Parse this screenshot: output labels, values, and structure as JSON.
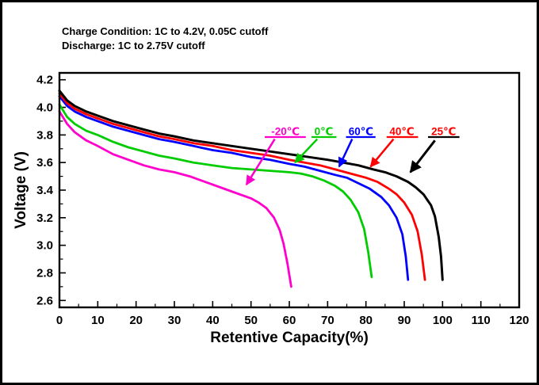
{
  "header": {
    "line1": "Charge Condition: 1C to 4.2V, 0.05C cutoff",
    "line2": "Discharge: 1C to 2.75V cutoff"
  },
  "chart_data": {
    "type": "line",
    "title": "",
    "xlabel": "Retentive Capacity(%)",
    "ylabel": "Voltage (V)",
    "xlim": [
      0,
      120
    ],
    "ylim": [
      2.55,
      4.25
    ],
    "grid": false,
    "legend_position": "none",
    "x_ticks": [
      0,
      10,
      20,
      30,
      40,
      50,
      60,
      70,
      80,
      90,
      100,
      110,
      120
    ],
    "y_tick_labels": [
      "2.6",
      "2.8",
      "3.0",
      "3.2",
      "3.4",
      "3.6",
      "3.8",
      "4.0",
      "4.2"
    ],
    "x_minor_step": 5,
    "y_minor_step": 0.1,
    "series": [
      {
        "name": "-20℃",
        "color": "#ff00cc",
        "width": 2.8,
        "points": [
          [
            0,
            3.97
          ],
          [
            2,
            3.88
          ],
          [
            4,
            3.82
          ],
          [
            7,
            3.76
          ],
          [
            10,
            3.72
          ],
          [
            14,
            3.66
          ],
          [
            18,
            3.62
          ],
          [
            22,
            3.58
          ],
          [
            26,
            3.55
          ],
          [
            30,
            3.53
          ],
          [
            34,
            3.5
          ],
          [
            38,
            3.46
          ],
          [
            42,
            3.42
          ],
          [
            46,
            3.38
          ],
          [
            50,
            3.34
          ],
          [
            52,
            3.31
          ],
          [
            54,
            3.27
          ],
          [
            56,
            3.2
          ],
          [
            57.5,
            3.11
          ],
          [
            58.5,
            3.01
          ],
          [
            59.5,
            2.87
          ],
          [
            60.5,
            2.7
          ]
        ]
      },
      {
        "name": "0℃",
        "color": "#00cc00",
        "width": 2.8,
        "points": [
          [
            0,
            4.02
          ],
          [
            2,
            3.93
          ],
          [
            4,
            3.88
          ],
          [
            7,
            3.83
          ],
          [
            10,
            3.8
          ],
          [
            14,
            3.75
          ],
          [
            18,
            3.71
          ],
          [
            22,
            3.68
          ],
          [
            26,
            3.65
          ],
          [
            30,
            3.63
          ],
          [
            35,
            3.6
          ],
          [
            40,
            3.58
          ],
          [
            45,
            3.56
          ],
          [
            50,
            3.55
          ],
          [
            55,
            3.54
          ],
          [
            60,
            3.53
          ],
          [
            63,
            3.52
          ],
          [
            66,
            3.5
          ],
          [
            69,
            3.47
          ],
          [
            72,
            3.43
          ],
          [
            74,
            3.39
          ],
          [
            76,
            3.33
          ],
          [
            78,
            3.24
          ],
          [
            79.5,
            3.12
          ],
          [
            80.6,
            2.95
          ],
          [
            81.5,
            2.77
          ]
        ]
      },
      {
        "name": "60℃",
        "color": "#0000ff",
        "width": 2.8,
        "points": [
          [
            0,
            4.08
          ],
          [
            2,
            4.01
          ],
          [
            4,
            3.97
          ],
          [
            7,
            3.93
          ],
          [
            10,
            3.9
          ],
          [
            14,
            3.86
          ],
          [
            18,
            3.83
          ],
          [
            22,
            3.8
          ],
          [
            26,
            3.77
          ],
          [
            30,
            3.75
          ],
          [
            35,
            3.72
          ],
          [
            40,
            3.69
          ],
          [
            45,
            3.67
          ],
          [
            50,
            3.64
          ],
          [
            55,
            3.62
          ],
          [
            60,
            3.59
          ],
          [
            64,
            3.57
          ],
          [
            68,
            3.54
          ],
          [
            72,
            3.51
          ],
          [
            75,
            3.49
          ],
          [
            78,
            3.45
          ],
          [
            81,
            3.41
          ],
          [
            84,
            3.35
          ],
          [
            86,
            3.29
          ],
          [
            88,
            3.2
          ],
          [
            89.5,
            3.08
          ],
          [
            90.4,
            2.92
          ],
          [
            91,
            2.75
          ]
        ]
      },
      {
        "name": "40℃",
        "color": "#ff0000",
        "width": 2.8,
        "points": [
          [
            0,
            4.1
          ],
          [
            2,
            4.03
          ],
          [
            4,
            3.99
          ],
          [
            7,
            3.95
          ],
          [
            10,
            3.92
          ],
          [
            14,
            3.88
          ],
          [
            18,
            3.85
          ],
          [
            22,
            3.82
          ],
          [
            26,
            3.79
          ],
          [
            30,
            3.77
          ],
          [
            35,
            3.74
          ],
          [
            40,
            3.72
          ],
          [
            45,
            3.69
          ],
          [
            50,
            3.67
          ],
          [
            55,
            3.65
          ],
          [
            60,
            3.62
          ],
          [
            64,
            3.6
          ],
          [
            68,
            3.58
          ],
          [
            72,
            3.55
          ],
          [
            76,
            3.52
          ],
          [
            80,
            3.49
          ],
          [
            83,
            3.46
          ],
          [
            86,
            3.41
          ],
          [
            88,
            3.37
          ],
          [
            90,
            3.31
          ],
          [
            92,
            3.22
          ],
          [
            93.5,
            3.1
          ],
          [
            94.6,
            2.93
          ],
          [
            95.4,
            2.75
          ]
        ]
      },
      {
        "name": "25℃",
        "color": "#000000",
        "width": 3,
        "points": [
          [
            0,
            4.12
          ],
          [
            2,
            4.05
          ],
          [
            4,
            4.01
          ],
          [
            7,
            3.97
          ],
          [
            10,
            3.94
          ],
          [
            14,
            3.9
          ],
          [
            18,
            3.87
          ],
          [
            22,
            3.84
          ],
          [
            26,
            3.81
          ],
          [
            30,
            3.79
          ],
          [
            35,
            3.76
          ],
          [
            40,
            3.74
          ],
          [
            45,
            3.72
          ],
          [
            50,
            3.7
          ],
          [
            55,
            3.68
          ],
          [
            60,
            3.66
          ],
          [
            65,
            3.64
          ],
          [
            70,
            3.62
          ],
          [
            74,
            3.6
          ],
          [
            78,
            3.58
          ],
          [
            82,
            3.55
          ],
          [
            85,
            3.53
          ],
          [
            88,
            3.5
          ],
          [
            91,
            3.46
          ],
          [
            93,
            3.42
          ],
          [
            95,
            3.37
          ],
          [
            97,
            3.29
          ],
          [
            98,
            3.21
          ],
          [
            99,
            3.06
          ],
          [
            99.6,
            2.92
          ],
          [
            100,
            2.75
          ]
        ]
      }
    ],
    "annotations": [
      {
        "label": "-20℃",
        "text_color": "#ff00cc",
        "line_color": "#ff00cc",
        "text_at": [
          59,
          3.8
        ],
        "underline": [
          53.6,
          64.3,
          3.785
        ],
        "arrow_from": [
          56.2,
          3.77
        ],
        "arrow_to": [
          48.8,
          3.44
        ],
        "stroke": 2.5
      },
      {
        "label": "0℃",
        "text_color": "#00cc00",
        "line_color": "#00cc00",
        "text_at": [
          69,
          3.8
        ],
        "underline": [
          65.8,
          72.3,
          3.785
        ],
        "arrow_from": [
          67.3,
          3.77
        ],
        "arrow_to": [
          61.5,
          3.6
        ],
        "stroke": 2.5
      },
      {
        "label": "60℃",
        "text_color": "#0000ff",
        "line_color": "#0000ff",
        "text_at": [
          78.7,
          3.8
        ],
        "underline": [
          74.8,
          82.5,
          3.785
        ],
        "arrow_from": [
          76.4,
          3.77
        ],
        "arrow_to": [
          73.0,
          3.57
        ],
        "stroke": 2.5
      },
      {
        "label": "40℃",
        "text_color": "#ff0000",
        "line_color": "#ff0000",
        "text_at": [
          89.4,
          3.8
        ],
        "underline": [
          85.4,
          93.6,
          3.785
        ],
        "arrow_from": [
          87.2,
          3.77
        ],
        "arrow_to": [
          81.2,
          3.57
        ],
        "stroke": 2.5
      },
      {
        "label": "25℃",
        "text_color": "#ff0000",
        "line_color": "#000000",
        "text_at": [
          100.3,
          3.8
        ],
        "underline": [
          96.2,
          104.4,
          3.785
        ],
        "arrow_from": [
          98.0,
          3.76
        ],
        "arrow_to": [
          91.6,
          3.53
        ],
        "stroke": 3
      }
    ]
  }
}
